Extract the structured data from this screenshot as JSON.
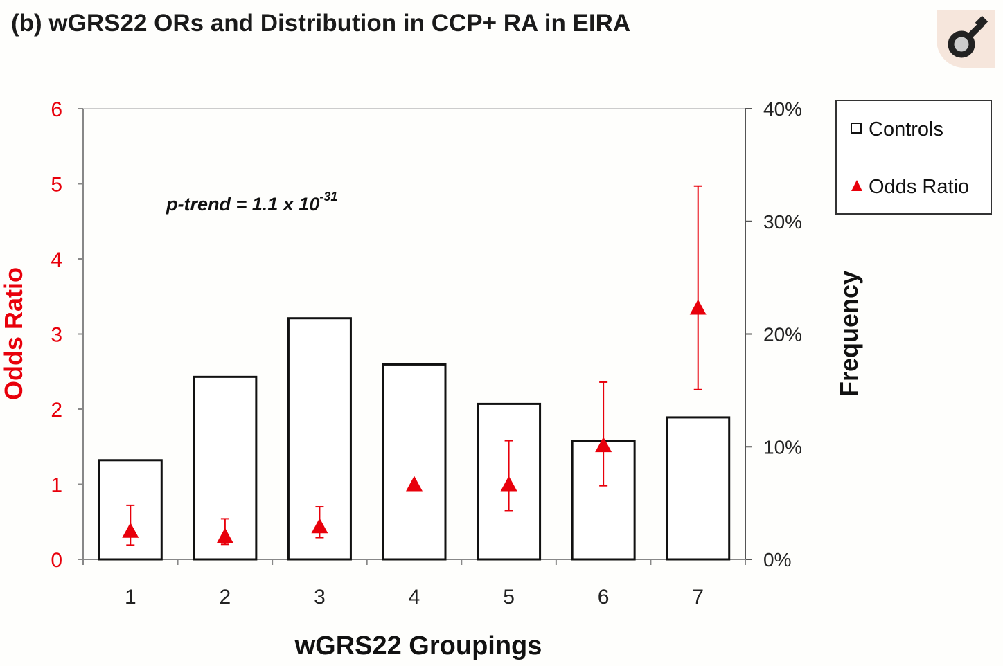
{
  "title": "(b) wGRS22 ORs and Distribution in CCP+ RA in EIRA",
  "icon": "male-symbol-icon",
  "chart_data": {
    "type": "bar",
    "title": "(b) wGRS22 ORs and Distribution in CCP+ RA in EIRA",
    "xlabel": "wGRS22 Groupings",
    "ylabel": "Odds Ratio",
    "ylabel_right": "Frequency",
    "categories": [
      "1",
      "2",
      "3",
      "4",
      "5",
      "6",
      "7"
    ],
    "ylim": [
      0,
      6
    ],
    "ylim_right": [
      0,
      40
    ],
    "yticks": [
      "0",
      "1",
      "2",
      "3",
      "4",
      "5",
      "6"
    ],
    "yticks_right": [
      "0%",
      "10%",
      "20%",
      "30%",
      "40%"
    ],
    "annotation": {
      "text": "p-trend = 1.1 x 10",
      "superscript": "-31"
    },
    "legend": {
      "position": "top-right",
      "entries": [
        "Controls",
        "Odds Ratio"
      ]
    },
    "series": [
      {
        "name": "Controls",
        "type": "bar",
        "axis": "right",
        "values": [
          8.8,
          16.2,
          21.4,
          17.3,
          13.8,
          10.5,
          12.6
        ]
      },
      {
        "name": "Odds Ratio",
        "type": "scatter",
        "axis": "left",
        "color": "#e8000b",
        "values": [
          0.38,
          0.31,
          0.44,
          1.0,
          1.0,
          1.52,
          3.35
        ],
        "ci_low": [
          0.19,
          0.2,
          0.29,
          null,
          0.65,
          0.98,
          2.26
        ],
        "ci_high": [
          0.72,
          0.54,
          0.7,
          null,
          1.58,
          2.36,
          4.97
        ]
      }
    ]
  }
}
